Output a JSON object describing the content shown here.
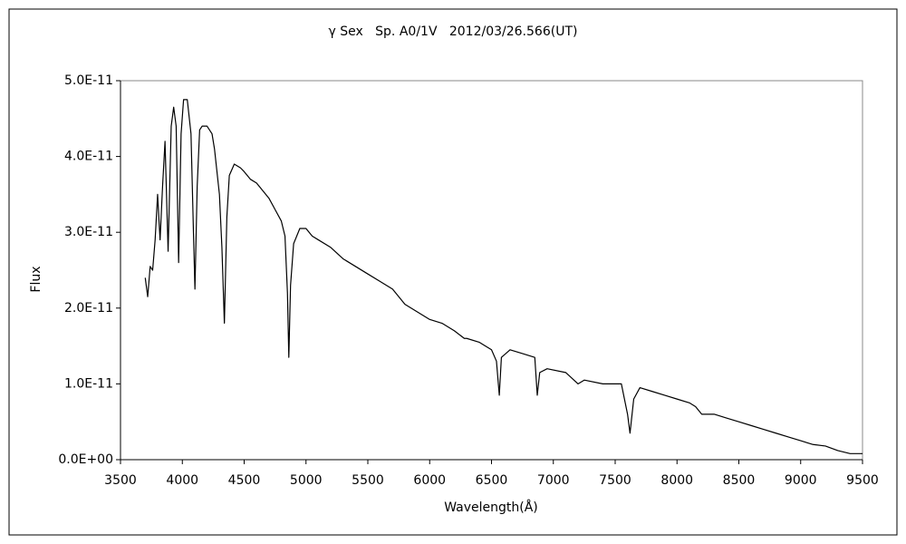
{
  "chart_data": {
    "type": "line",
    "title": "γ Sex   Sp. A0/1V   2012/03/26.566(UT)",
    "xlabel": "Wavelength(Å)",
    "ylabel": "Flux",
    "color": "#000000",
    "grid": false,
    "xlim": [
      3500,
      9500
    ],
    "xticks": [
      3500,
      4000,
      4500,
      5000,
      5500,
      6000,
      6500,
      7000,
      7500,
      8000,
      8500,
      9000,
      9500
    ],
    "ylim": [
      0,
      5e-11
    ],
    "yticks": [
      {
        "value": 0,
        "label": "0.0E+00"
      },
      {
        "value": 1e-11,
        "label": "1.0E-11"
      },
      {
        "value": 2e-11,
        "label": "2.0E-11"
      },
      {
        "value": 3e-11,
        "label": "3.0E-11"
      },
      {
        "value": 4e-11,
        "label": "4.0E-11"
      },
      {
        "value": 5e-11,
        "label": "5.0E-11"
      }
    ],
    "x": [
      3700,
      3720,
      3740,
      3760,
      3780,
      3800,
      3820,
      3840,
      3860,
      3885,
      3910,
      3930,
      3950,
      3970,
      3990,
      4010,
      4040,
      4070,
      4090,
      4102,
      4120,
      4140,
      4160,
      4200,
      4240,
      4260,
      4300,
      4320,
      4340,
      4360,
      4380,
      4420,
      4470,
      4500,
      4550,
      4600,
      4650,
      4700,
      4750,
      4800,
      4830,
      4850,
      4861,
      4875,
      4900,
      4950,
      5000,
      5050,
      5100,
      5200,
      5300,
      5400,
      5500,
      5600,
      5700,
      5800,
      5900,
      6000,
      6100,
      6200,
      6280,
      6300,
      6400,
      6500,
      6540,
      6563,
      6580,
      6650,
      6750,
      6850,
      6870,
      6890,
      6950,
      7100,
      7200,
      7250,
      7400,
      7550,
      7600,
      7620,
      7650,
      7700,
      7800,
      7900,
      8000,
      8100,
      8150,
      8200,
      8300,
      8400,
      8500,
      8600,
      8700,
      8800,
      8900,
      9000,
      9100,
      9200,
      9300,
      9400,
      9500
    ],
    "values": [
      2.4e-11,
      2.15e-11,
      2.55e-11,
      2.5e-11,
      2.9e-11,
      3.5e-11,
      2.9e-11,
      3.6e-11,
      4.2e-11,
      2.75e-11,
      4.4e-11,
      4.65e-11,
      4.4e-11,
      2.6e-11,
      4.3e-11,
      4.75e-11,
      4.75e-11,
      4.3e-11,
      3e-11,
      2.25e-11,
      3.6e-11,
      4.35e-11,
      4.4e-11,
      4.4e-11,
      4.3e-11,
      4.1e-11,
      3.5e-11,
      2.8e-11,
      1.8e-11,
      3.2e-11,
      3.75e-11,
      3.9e-11,
      3.85e-11,
      3.8e-11,
      3.7e-11,
      3.65e-11,
      3.55e-11,
      3.45e-11,
      3.3e-11,
      3.15e-11,
      2.95e-11,
      2.2e-11,
      1.35e-11,
      2.3e-11,
      2.85e-11,
      3.05e-11,
      3.05e-11,
      2.95e-11,
      2.9e-11,
      2.8e-11,
      2.65e-11,
      2.55e-11,
      2.45e-11,
      2.35e-11,
      2.25e-11,
      2.05e-11,
      1.95e-11,
      1.85e-11,
      1.8e-11,
      1.7e-11,
      1.6e-11,
      1.6e-11,
      1.55e-11,
      1.45e-11,
      1.3e-11,
      8.5e-12,
      1.35e-11,
      1.45e-11,
      1.4e-11,
      1.35e-11,
      8.5e-12,
      1.15e-11,
      1.2e-11,
      1.15e-11,
      1e-11,
      1.05e-11,
      1e-11,
      1e-11,
      6e-12,
      3.5e-12,
      8e-12,
      9.5e-12,
      9e-12,
      8.5e-12,
      8e-12,
      7.5e-12,
      7e-12,
      6e-12,
      6e-12,
      5.5e-12,
      5e-12,
      4.5e-12,
      4e-12,
      3.5e-12,
      3e-12,
      2.5e-12,
      2e-12,
      1.8e-12,
      1.2e-12,
      8e-13,
      8e-13
    ]
  }
}
